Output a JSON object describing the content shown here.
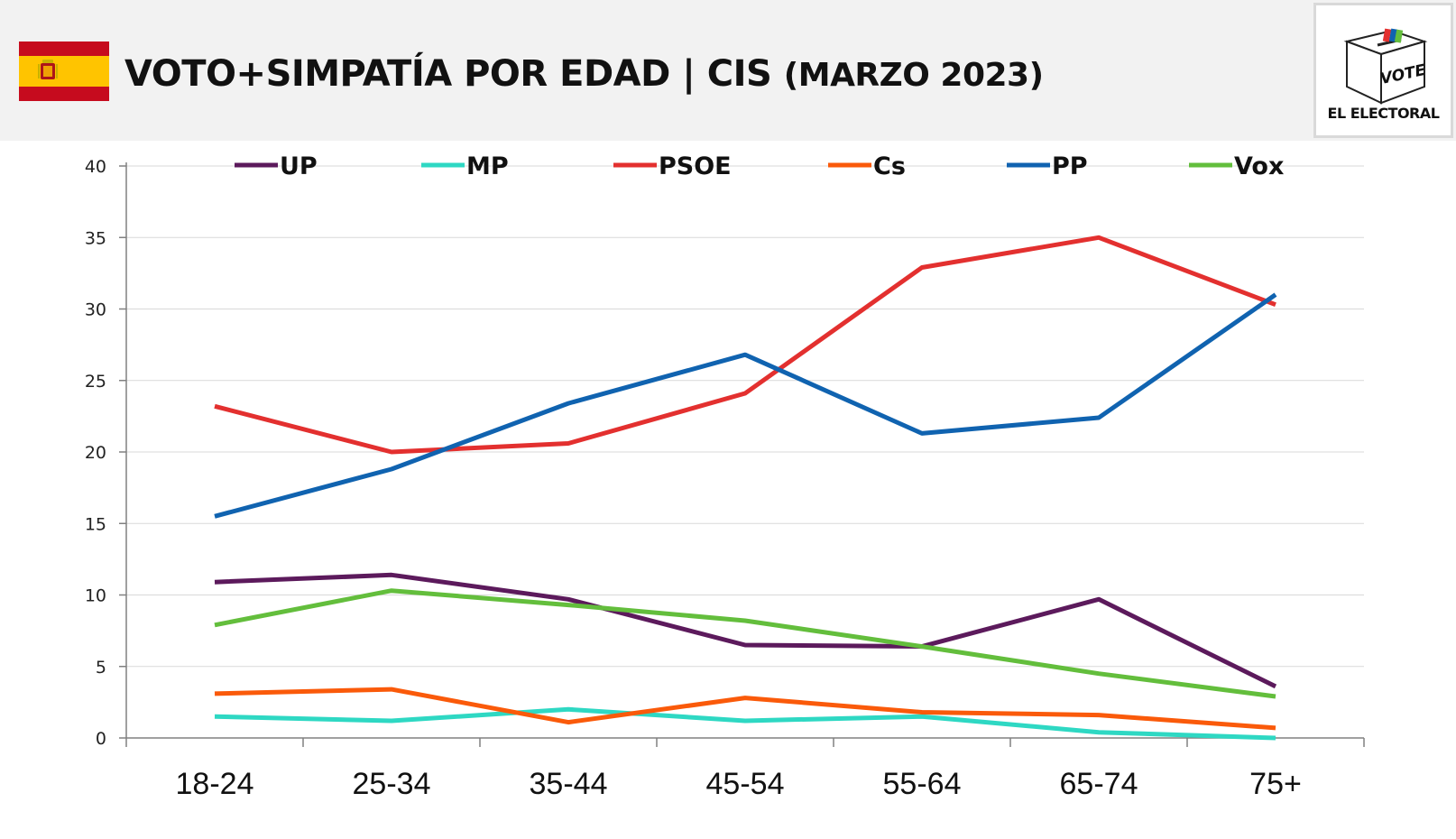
{
  "header": {
    "title_main": "VOTO+SIMPATÍA POR EDAD | CIS",
    "title_sub": "(MARZO 2023)",
    "flag_icon": "spain-flag-icon",
    "flag_colors": [
      "#c60b1e",
      "#ffc400"
    ]
  },
  "logo": {
    "box_label": "VOTE",
    "name": "EL ELECTORAL",
    "icon": "ballot-box-icon"
  },
  "chart_data": {
    "type": "line",
    "categories": [
      "18-24",
      "25-34",
      "35-44",
      "45-54",
      "55-64",
      "65-74",
      "75+"
    ],
    "ylim": [
      0,
      40
    ],
    "yticks": [
      0,
      5,
      10,
      15,
      20,
      25,
      30,
      35,
      40
    ],
    "grid": true,
    "legend_position": "top",
    "series": [
      {
        "name": "UP",
        "color": "#5c1a5c",
        "values": [
          10.9,
          11.4,
          9.7,
          6.5,
          6.4,
          9.7,
          3.6
        ]
      },
      {
        "name": "MP",
        "color": "#2ed8c3",
        "values": [
          1.5,
          1.2,
          2.0,
          1.2,
          1.5,
          0.4,
          0.0
        ]
      },
      {
        "name": "PSOE",
        "color": "#e3302f",
        "values": [
          23.2,
          20.0,
          20.6,
          24.1,
          32.9,
          35.0,
          30.3
        ]
      },
      {
        "name": "Cs",
        "color": "#fa5a0a",
        "values": [
          3.1,
          3.4,
          1.1,
          2.8,
          1.8,
          1.6,
          0.7
        ]
      },
      {
        "name": "PP",
        "color": "#1063b0",
        "values": [
          15.5,
          18.8,
          23.4,
          26.8,
          21.3,
          22.4,
          31.0
        ]
      },
      {
        "name": "Vox",
        "color": "#63be3c",
        "values": [
          7.9,
          10.3,
          9.3,
          8.2,
          6.4,
          4.5,
          2.9
        ]
      }
    ]
  }
}
